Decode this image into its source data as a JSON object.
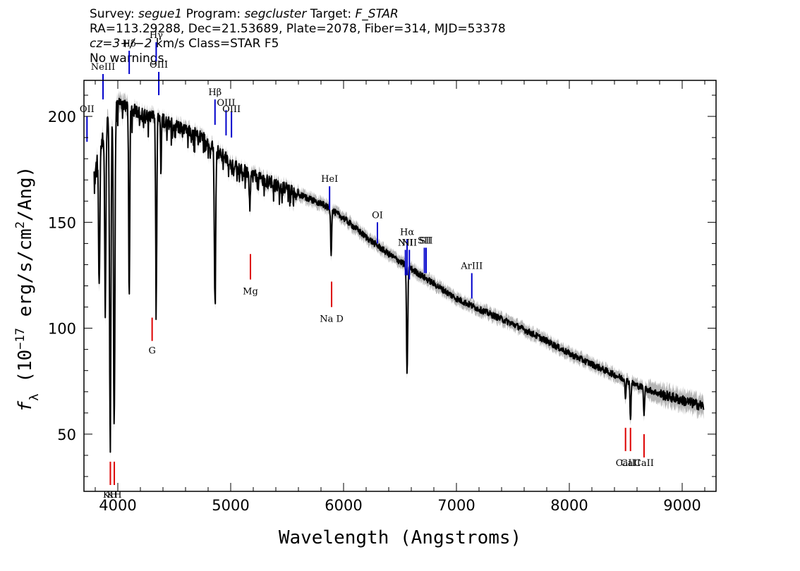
{
  "header": {
    "line1": {
      "survey_label": "Survey: ",
      "survey": "segue1",
      "program_label": " Program: ",
      "program": "segcluster",
      "target_label": " Target: ",
      "target": "F_STAR"
    },
    "line2": "RA=113.29288, Dec=21.53689, Plate=2078, Fiber=314, MJD=53378",
    "line3": {
      "cz": "cz=3+/−2",
      "rest": " km/s Class=STAR F5"
    },
    "line4": "No warnings."
  },
  "chart_data": {
    "type": "line",
    "title": "",
    "xlabel": "Wavelength (Angstroms)",
    "ylabel_parts": {
      "prefix": "f",
      "sub": "λ",
      "open": " (10",
      "exp1": "−17",
      "mid": " erg/s/cm",
      "exp2": "2",
      "close": "/Ang)"
    },
    "xlim": [
      3700,
      9300
    ],
    "ylim": [
      23,
      217
    ],
    "xticks": [
      4000,
      5000,
      6000,
      7000,
      8000,
      9000
    ],
    "yticks": [
      50,
      100,
      150,
      200
    ],
    "continuum": [
      [
        3800,
        175
      ],
      [
        3900,
        198
      ],
      [
        4000,
        207
      ],
      [
        4100,
        204
      ],
      [
        4200,
        201
      ],
      [
        4400,
        198
      ],
      [
        4600,
        194
      ],
      [
        4800,
        188
      ],
      [
        5000,
        178
      ],
      [
        5200,
        172
      ],
      [
        5400,
        168
      ],
      [
        5600,
        163
      ],
      [
        5800,
        159
      ],
      [
        6000,
        152
      ],
      [
        6200,
        143
      ],
      [
        6400,
        135
      ],
      [
        6600,
        128
      ],
      [
        6800,
        121
      ],
      [
        7000,
        114
      ],
      [
        7200,
        109
      ],
      [
        7500,
        102
      ],
      [
        7800,
        94
      ],
      [
        8000,
        88
      ],
      [
        8200,
        83
      ],
      [
        8400,
        78
      ],
      [
        8600,
        73
      ],
      [
        8800,
        69
      ],
      [
        9000,
        66
      ],
      [
        9200,
        63
      ]
    ],
    "absorption_lines": [
      [
        3835,
        118,
        8
      ],
      [
        3889,
        108,
        8
      ],
      [
        3933,
        48,
        9
      ],
      [
        3968,
        57,
        9
      ],
      [
        4101,
        115,
        7
      ],
      [
        4340,
        113,
        7
      ],
      [
        4383,
        172,
        5
      ],
      [
        4861,
        111,
        8
      ],
      [
        5169,
        158,
        6
      ],
      [
        5890,
        135,
        6
      ],
      [
        6563,
        79,
        8
      ],
      [
        8498,
        67,
        5
      ],
      [
        8542,
        56,
        6
      ],
      [
        8662,
        58,
        6
      ]
    ],
    "emission_markers": [
      {
        "label": "OII",
        "x": 3727,
        "top": 200,
        "bottom": 188,
        "label_y": 202
      },
      {
        "label": "NeIII",
        "x": 3869,
        "top": 220,
        "bottom": 208,
        "label_y": 222
      },
      {
        "label": "Hδ",
        "x": 4101,
        "top": 231,
        "bottom": 220,
        "label_y": 233
      },
      {
        "label": "Hγ",
        "x": 4340,
        "top": 235,
        "bottom": 226,
        "label_y": 237
      },
      {
        "label": "OIII",
        "x": 4363,
        "top": 221,
        "bottom": 210,
        "label_y": 223
      },
      {
        "label": "Hβ",
        "x": 4861,
        "top": 208,
        "bottom": 196,
        "label_y": 210
      },
      {
        "label": "OIII",
        "x": 4959,
        "top": 203,
        "bottom": 191,
        "label_y": 205
      },
      {
        "label": "OIII",
        "x": 5007,
        "top": 202,
        "bottom": 190,
        "label_y": 202
      },
      {
        "label": "HeI",
        "x": 5876,
        "top": 167,
        "bottom": 156,
        "label_y": 169
      },
      {
        "label": "OI",
        "x": 6300,
        "top": 150,
        "bottom": 140,
        "label_y": 152
      },
      {
        "label": "NII",
        "x": 6548,
        "top": 137,
        "bottom": 125,
        "label_y": 139
      },
      {
        "label": "Hα",
        "x": 6563,
        "top": 142,
        "bottom": 125,
        "label_y": 144
      },
      {
        "label": "NII",
        "x": 6583,
        "top": 137,
        "bottom": 123,
        "label_y": 139
      },
      {
        "label": "SII",
        "x": 6716,
        "top": 138,
        "bottom": 126,
        "label_y": 140
      },
      {
        "label": "SII",
        "x": 6731,
        "top": 138,
        "bottom": 126,
        "label_y": 140
      },
      {
        "label": "ArIII",
        "x": 7136,
        "top": 126,
        "bottom": 114,
        "label_y": 128
      }
    ],
    "absorption_markers": [
      {
        "label": "KH",
        "x": 3934,
        "top": 37,
        "bottom": 26,
        "label_y": 20
      },
      {
        "label": "KH",
        "x": 3969,
        "top": 37,
        "bottom": 26,
        "label_y": 20
      },
      {
        "label": "G",
        "x": 4304,
        "top": 105,
        "bottom": 94,
        "label_y": 88
      },
      {
        "label": "Mg",
        "x": 5175,
        "top": 135,
        "bottom": 123,
        "label_y": 116
      },
      {
        "label": "Na D",
        "x": 5894,
        "top": 122,
        "bottom": 110,
        "label_y": 103
      },
      {
        "label": "CaII",
        "x": 8498,
        "top": 53,
        "bottom": 42,
        "label_y": 35
      },
      {
        "label": "CaII",
        "x": 8542,
        "top": 53,
        "bottom": 42,
        "label_y": 35
      },
      {
        "label": "CaII",
        "x": 8662,
        "top": 50,
        "bottom": 39,
        "label_y": 35
      }
    ],
    "colors": {
      "spectrum": "#000000",
      "error_band": "#b4b4b4",
      "emission": "#0000cc",
      "absorption": "#dd0000"
    }
  }
}
